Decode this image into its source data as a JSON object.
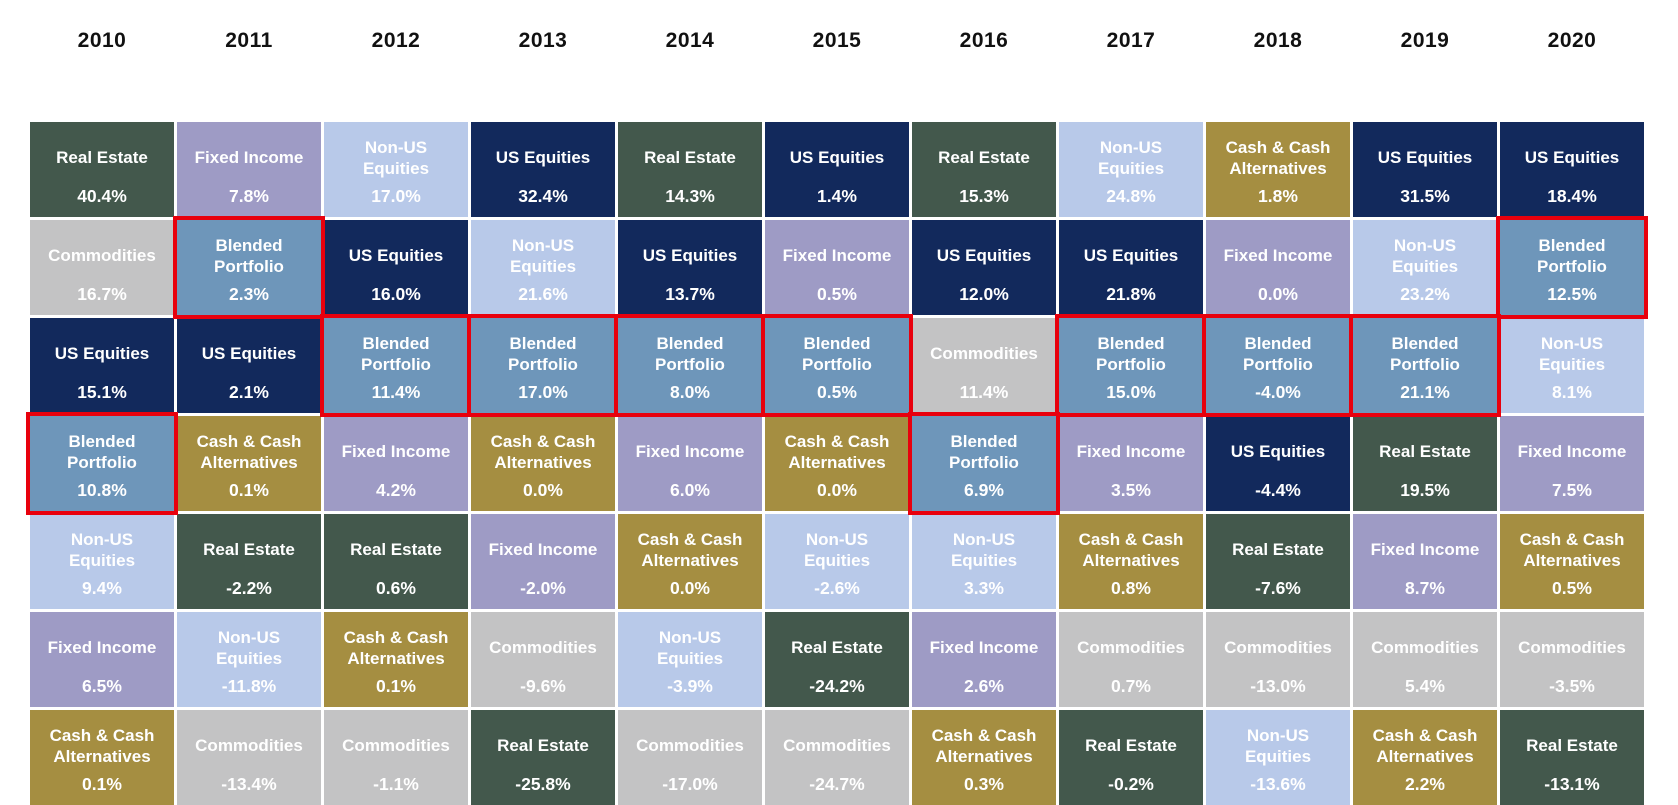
{
  "chart_data": {
    "type": "table",
    "subtype": "asset-class-annual-returns-quilt",
    "title": "",
    "years": [
      "2010",
      "2011",
      "2012",
      "2013",
      "2014",
      "2015",
      "2016",
      "2017",
      "2018",
      "2019",
      "2020"
    ],
    "legend": {
      "asset_colors": {
        "Real Estate": "#43584c",
        "Fixed Income": "#9e9bc5",
        "Non-US Equities": "#b8c9e9",
        "US Equities": "#12295c",
        "Cash & Cash Alternatives": "#a58e41",
        "Commodities": "#c3c3c4",
        "Blended Portfolio": "#6e96ba"
      },
      "cell_text_color": "#ffffff",
      "year_text_color": "#111111",
      "highlight_border_color": "#e8000d",
      "highlight_meaning": "Blended Portfolio cells outlined in red"
    },
    "columns": [
      {
        "year": "2010",
        "cells": [
          {
            "label": "Real Estate",
            "value": "40.4%",
            "highlight": false
          },
          {
            "label": "Commodities",
            "value": "16.7%",
            "highlight": false
          },
          {
            "label": "US Equities",
            "value": "15.1%",
            "highlight": false
          },
          {
            "label": "Blended Portfolio",
            "value": "10.8%",
            "highlight": true
          },
          {
            "label": "Non-US Equities",
            "value": "9.4%",
            "highlight": false
          },
          {
            "label": "Fixed Income",
            "value": "6.5%",
            "highlight": false
          },
          {
            "label": "Cash & Cash Alternatives",
            "value": "0.1%",
            "highlight": false
          }
        ]
      },
      {
        "year": "2011",
        "cells": [
          {
            "label": "Fixed Income",
            "value": "7.8%",
            "highlight": false
          },
          {
            "label": "Blended Portfolio",
            "value": "2.3%",
            "highlight": true
          },
          {
            "label": "US Equities",
            "value": "2.1%",
            "highlight": false
          },
          {
            "label": "Cash & Cash Alternatives",
            "value": "0.1%",
            "highlight": false
          },
          {
            "label": "Real Estate",
            "value": "-2.2%",
            "highlight": false
          },
          {
            "label": "Non-US Equities",
            "value": "-11.8%",
            "highlight": false
          },
          {
            "label": "Commodities",
            "value": "-13.4%",
            "highlight": false
          }
        ]
      },
      {
        "year": "2012",
        "cells": [
          {
            "label": "Non-US Equities",
            "value": "17.0%",
            "highlight": false
          },
          {
            "label": "US Equities",
            "value": "16.0%",
            "highlight": false
          },
          {
            "label": "Blended Portfolio",
            "value": "11.4%",
            "highlight": true
          },
          {
            "label": "Fixed Income",
            "value": "4.2%",
            "highlight": false
          },
          {
            "label": "Real Estate",
            "value": "0.6%",
            "highlight": false
          },
          {
            "label": "Cash & Cash Alternatives",
            "value": "0.1%",
            "highlight": false
          },
          {
            "label": "Commodities",
            "value": "-1.1%",
            "highlight": false
          }
        ]
      },
      {
        "year": "2013",
        "cells": [
          {
            "label": "US Equities",
            "value": "32.4%",
            "highlight": false
          },
          {
            "label": "Non-US Equities",
            "value": "21.6%",
            "highlight": false
          },
          {
            "label": "Blended Portfolio",
            "value": "17.0%",
            "highlight": true
          },
          {
            "label": "Cash & Cash Alternatives",
            "value": "0.0%",
            "highlight": false
          },
          {
            "label": "Fixed Income",
            "value": "-2.0%",
            "highlight": false
          },
          {
            "label": "Commodities",
            "value": "-9.6%",
            "highlight": false
          },
          {
            "label": "Real Estate",
            "value": "-25.8%",
            "highlight": false
          }
        ]
      },
      {
        "year": "2014",
        "cells": [
          {
            "label": "Real Estate",
            "value": "14.3%",
            "highlight": false
          },
          {
            "label": "US Equities",
            "value": "13.7%",
            "highlight": false
          },
          {
            "label": "Blended Portfolio",
            "value": "8.0%",
            "highlight": true
          },
          {
            "label": "Fixed Income",
            "value": "6.0%",
            "highlight": false
          },
          {
            "label": "Cash & Cash Alternatives",
            "value": "0.0%",
            "highlight": false
          },
          {
            "label": "Non-US Equities",
            "value": "-3.9%",
            "highlight": false
          },
          {
            "label": "Commodities",
            "value": "-17.0%",
            "highlight": false
          }
        ]
      },
      {
        "year": "2015",
        "cells": [
          {
            "label": "US Equities",
            "value": "1.4%",
            "highlight": false
          },
          {
            "label": "Fixed Income",
            "value": "0.5%",
            "highlight": false
          },
          {
            "label": "Blended Portfolio",
            "value": "0.5%",
            "highlight": true
          },
          {
            "label": "Cash & Cash Alternatives",
            "value": "0.0%",
            "highlight": false
          },
          {
            "label": "Non-US Equities",
            "value": "-2.6%",
            "highlight": false
          },
          {
            "label": "Real Estate",
            "value": "-24.2%",
            "highlight": false
          },
          {
            "label": "Commodities",
            "value": "-24.7%",
            "highlight": false
          }
        ]
      },
      {
        "year": "2016",
        "cells": [
          {
            "label": "Real Estate",
            "value": "15.3%",
            "highlight": false
          },
          {
            "label": "US Equities",
            "value": "12.0%",
            "highlight": false
          },
          {
            "label": "Commodities",
            "value": "11.4%",
            "highlight": false
          },
          {
            "label": "Blended Portfolio",
            "value": "6.9%",
            "highlight": true
          },
          {
            "label": "Non-US Equities",
            "value": "3.3%",
            "highlight": false
          },
          {
            "label": "Fixed Income",
            "value": "2.6%",
            "highlight": false
          },
          {
            "label": "Cash & Cash Alternatives",
            "value": "0.3%",
            "highlight": false
          }
        ]
      },
      {
        "year": "2017",
        "cells": [
          {
            "label": "Non-US Equities",
            "value": "24.8%",
            "highlight": false
          },
          {
            "label": "US Equities",
            "value": "21.8%",
            "highlight": false
          },
          {
            "label": "Blended Portfolio",
            "value": "15.0%",
            "highlight": true
          },
          {
            "label": "Fixed Income",
            "value": "3.5%",
            "highlight": false
          },
          {
            "label": "Cash & Cash Alternatives",
            "value": "0.8%",
            "highlight": false
          },
          {
            "label": "Commodities",
            "value": "0.7%",
            "highlight": false
          },
          {
            "label": "Real Estate",
            "value": "-0.2%",
            "highlight": false
          }
        ]
      },
      {
        "year": "2018",
        "cells": [
          {
            "label": "Cash & Cash Alternatives",
            "value": "1.8%",
            "highlight": false
          },
          {
            "label": "Fixed Income",
            "value": "0.0%",
            "highlight": false
          },
          {
            "label": "Blended Portfolio",
            "value": "-4.0%",
            "highlight": true
          },
          {
            "label": "US Equities",
            "value": "-4.4%",
            "highlight": false
          },
          {
            "label": "Real Estate",
            "value": "-7.6%",
            "highlight": false
          },
          {
            "label": "Commodities",
            "value": "-13.0%",
            "highlight": false
          },
          {
            "label": "Non-US Equities",
            "value": "-13.6%",
            "highlight": false
          }
        ]
      },
      {
        "year": "2019",
        "cells": [
          {
            "label": "US Equities",
            "value": "31.5%",
            "highlight": false
          },
          {
            "label": "Non-US Equities",
            "value": "23.2%",
            "highlight": false
          },
          {
            "label": "Blended Portfolio",
            "value": "21.1%",
            "highlight": true
          },
          {
            "label": "Real Estate",
            "value": "19.5%",
            "highlight": false
          },
          {
            "label": "Fixed Income",
            "value": "8.7%",
            "highlight": false
          },
          {
            "label": "Commodities",
            "value": "5.4%",
            "highlight": false
          },
          {
            "label": "Cash & Cash Alternatives",
            "value": "2.2%",
            "highlight": false
          }
        ]
      },
      {
        "year": "2020",
        "cells": [
          {
            "label": "US Equities",
            "value": "18.4%",
            "highlight": false
          },
          {
            "label": "Blended Portfolio",
            "value": "12.5%",
            "highlight": true
          },
          {
            "label": "Non-US Equities",
            "value": "8.1%",
            "highlight": false
          },
          {
            "label": "Fixed Income",
            "value": "7.5%",
            "highlight": false
          },
          {
            "label": "Cash & Cash Alternatives",
            "value": "0.5%",
            "highlight": false
          },
          {
            "label": "Commodities",
            "value": "-3.5%",
            "highlight": false
          },
          {
            "label": "Real Estate",
            "value": "-13.1%",
            "highlight": false
          }
        ]
      }
    ]
  }
}
